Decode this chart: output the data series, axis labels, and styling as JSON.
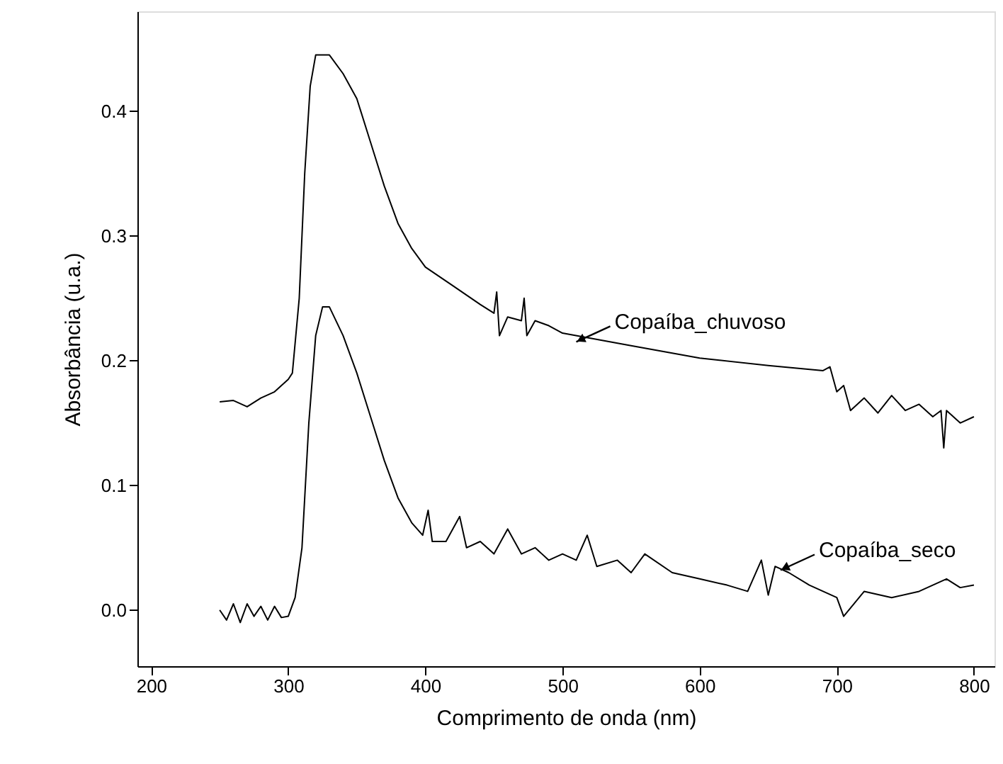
{
  "chart_data": {
    "type": "line",
    "xlabel": "Comprimento de onda (nm)",
    "ylabel": "Absorbância (u.a.)",
    "xlim": [
      190,
      815
    ],
    "ylim": [
      -0.045,
      0.48
    ],
    "xticks": [
      200,
      300,
      400,
      500,
      600,
      700,
      800
    ],
    "yticks": [
      {
        "value": 0,
        "label": "0.0"
      },
      0.1,
      0.2,
      0.3,
      0.4
    ],
    "grid": false,
    "marker": "none",
    "line_style": "solid",
    "annotations": [
      {
        "text": "Copaíba_chuvoso",
        "x": 510,
        "y": 0.215
      },
      {
        "text": "Copaíba_seco",
        "x": 659,
        "y": 0.032
      }
    ],
    "series": [
      {
        "color": "#000000",
        "x": [
          250,
          260,
          270,
          280,
          290,
          300,
          303,
          308,
          312,
          316,
          320,
          330,
          340,
          350,
          360,
          370,
          380,
          390,
          400,
          420,
          440,
          450,
          452,
          454,
          460,
          470,
          472,
          474,
          480,
          490,
          500,
          550,
          600,
          650,
          690,
          695,
          700,
          705,
          710,
          720,
          730,
          740,
          750,
          760,
          770,
          776,
          778,
          780,
          790,
          800
        ],
        "values": [
          0.167,
          0.168,
          0.163,
          0.17,
          0.175,
          0.185,
          0.19,
          0.25,
          0.35,
          0.42,
          0.445,
          0.445,
          0.43,
          0.41,
          0.375,
          0.34,
          0.31,
          0.29,
          0.275,
          0.26,
          0.245,
          0.238,
          0.255,
          0.22,
          0.235,
          0.232,
          0.25,
          0.22,
          0.232,
          0.228,
          0.222,
          0.212,
          0.202,
          0.196,
          0.192,
          0.195,
          0.175,
          0.18,
          0.16,
          0.17,
          0.158,
          0.172,
          0.16,
          0.165,
          0.155,
          0.16,
          0.13,
          0.16,
          0.15,
          0.155
        ]
      },
      {
        "color": "#000000",
        "x": [
          250,
          255,
          260,
          265,
          270,
          275,
          280,
          285,
          290,
          295,
          300,
          305,
          310,
          315,
          320,
          325,
          330,
          340,
          350,
          360,
          370,
          380,
          390,
          398,
          402,
          405,
          415,
          425,
          430,
          440,
          450,
          460,
          470,
          480,
          490,
          500,
          510,
          518,
          525,
          540,
          550,
          560,
          580,
          600,
          620,
          635,
          645,
          650,
          655,
          665,
          680,
          700,
          705,
          720,
          740,
          760,
          780,
          790,
          800
        ],
        "values": [
          0.0,
          -0.008,
          0.005,
          -0.01,
          0.005,
          -0.005,
          0.003,
          -0.008,
          0.003,
          -0.006,
          -0.005,
          0.01,
          0.05,
          0.15,
          0.22,
          0.243,
          0.243,
          0.22,
          0.19,
          0.155,
          0.12,
          0.09,
          0.07,
          0.06,
          0.08,
          0.055,
          0.055,
          0.075,
          0.05,
          0.055,
          0.045,
          0.065,
          0.045,
          0.05,
          0.04,
          0.045,
          0.04,
          0.06,
          0.035,
          0.04,
          0.03,
          0.045,
          0.03,
          0.025,
          0.02,
          0.015,
          0.04,
          0.012,
          0.035,
          0.03,
          0.02,
          0.01,
          -0.005,
          0.015,
          0.01,
          0.015,
          0.025,
          0.018,
          0.02
        ]
      }
    ]
  }
}
